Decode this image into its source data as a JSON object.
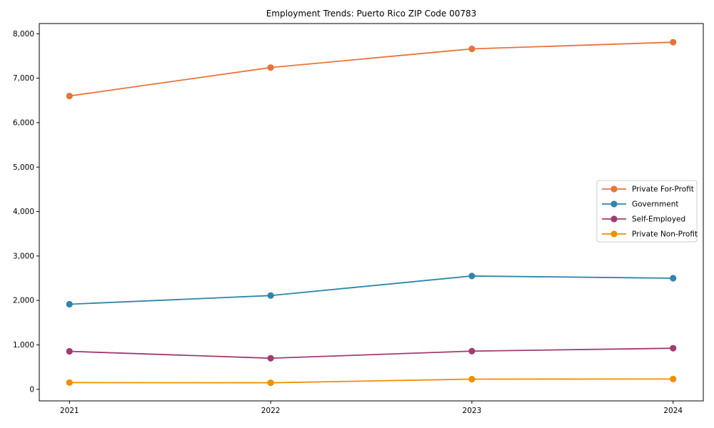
{
  "chart_data": {
    "type": "line",
    "title": "Employment Trends: Puerto Rico ZIP Code 00783",
    "xlabel": "",
    "ylabel": "",
    "x": [
      2021,
      2022,
      2023,
      2024
    ],
    "xticks": [
      "2021",
      "2022",
      "2023",
      "2024"
    ],
    "yticks": [
      0,
      1000,
      2000,
      3000,
      4000,
      5000,
      6000,
      7000,
      8000
    ],
    "ytick_labels": [
      "0",
      "1,000",
      "2,000",
      "3,000",
      "4,000",
      "5,000",
      "6,000",
      "7,000",
      "8,000"
    ],
    "x_range": [
      2020.85,
      2024.15
    ],
    "y_range": [
      -260,
      8230
    ],
    "grid": false,
    "legend_position": "center-right",
    "marker": "circle",
    "series": [
      {
        "name": "Private For-Profit",
        "color": "#E8743B",
        "values": [
          6600,
          7240,
          7660,
          7810
        ]
      },
      {
        "name": "Government",
        "color": "#2E86AB",
        "values": [
          1915,
          2110,
          2550,
          2500
        ]
      },
      {
        "name": "Self-Employed",
        "color": "#A23B72",
        "values": [
          855,
          700,
          860,
          925
        ]
      },
      {
        "name": "Private Non-Profit",
        "color": "#F18F01",
        "values": [
          152,
          148,
          230,
          232
        ]
      }
    ],
    "axis_color": "#000000",
    "legend_border_color": "#cccccc",
    "legend_bg_color": "#ffffff"
  }
}
